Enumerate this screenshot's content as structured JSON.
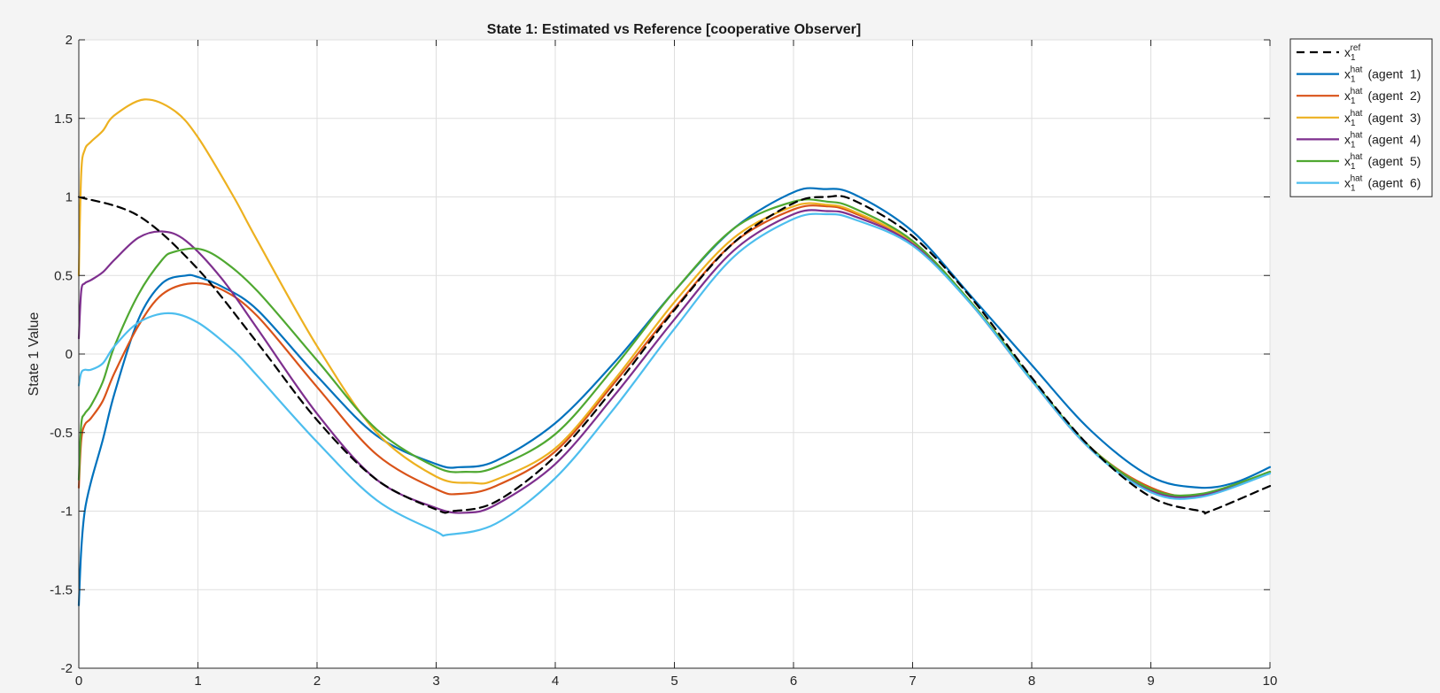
{
  "chart_data": {
    "type": "line",
    "title": "State 1: Estimated vs Reference [cooperative Observer]",
    "xlabel": "",
    "ylabel": "State 1 Value",
    "xlim": [
      0,
      10
    ],
    "ylim": [
      -2,
      2
    ],
    "xticks": [
      "0",
      "1",
      "2",
      "3",
      "4",
      "5",
      "6",
      "7",
      "8",
      "9",
      "10"
    ],
    "yticks": [
      "2",
      "1.5",
      "1",
      "0.5",
      "0",
      "-0.5",
      "-1",
      "-1.5",
      "-2"
    ],
    "grid": true,
    "legend_position": "outside-top-right",
    "series": [
      {
        "name": "x1ref",
        "legend_base": "x",
        "legend_sub": "1",
        "legend_sup": "ref",
        "legend_suffix": "",
        "color": "#000000",
        "dashed": true,
        "x": [
          0,
          0.5,
          1,
          1.5,
          2,
          2.5,
          3,
          3.14,
          3.5,
          4,
          4.5,
          5,
          5.5,
          6,
          6.28,
          6.5,
          7,
          7.5,
          8,
          8.5,
          9,
          9.42,
          9.5,
          10
        ],
        "y": [
          1,
          0.88,
          0.54,
          0.07,
          -0.42,
          -0.8,
          -0.99,
          -1.0,
          -0.94,
          -0.65,
          -0.21,
          0.28,
          0.71,
          0.96,
          1.0,
          0.98,
          0.75,
          0.35,
          -0.15,
          -0.6,
          -0.91,
          -1.0,
          -1.0,
          -0.84
        ]
      },
      {
        "name": "x1hat (agent 1)",
        "legend_base": "x",
        "legend_sub": "1",
        "legend_sup": "hat",
        "legend_suffix": "(agent  1)",
        "color": "#0072bd",
        "dashed": false,
        "x": [
          0,
          0.02,
          0.05,
          0.1,
          0.2,
          0.3,
          0.5,
          0.7,
          0.9,
          1.0,
          1.2,
          1.5,
          2,
          2.5,
          3,
          3.2,
          3.5,
          4,
          4.5,
          5,
          5.5,
          6,
          6.25,
          6.5,
          7,
          7.5,
          8,
          8.5,
          9,
          9.4,
          9.7,
          10
        ],
        "y": [
          -1.6,
          -1.25,
          -1.0,
          -0.82,
          -0.55,
          -0.25,
          0.22,
          0.45,
          0.5,
          0.49,
          0.43,
          0.28,
          -0.14,
          -0.52,
          -0.7,
          -0.72,
          -0.68,
          -0.44,
          -0.05,
          0.4,
          0.8,
          1.03,
          1.05,
          1.02,
          0.78,
          0.36,
          -0.07,
          -0.49,
          -0.78,
          -0.85,
          -0.82,
          -0.72
        ]
      },
      {
        "name": "x1hat (agent 2)",
        "legend_base": "x",
        "legend_sub": "1",
        "legend_sup": "hat",
        "legend_suffix": "(agent  2)",
        "color": "#d95319",
        "dashed": false,
        "x": [
          0,
          0.02,
          0.05,
          0.1,
          0.2,
          0.3,
          0.5,
          0.7,
          0.95,
          1.2,
          1.5,
          2,
          2.5,
          3,
          3.2,
          3.5,
          4,
          4.5,
          5,
          5.5,
          6,
          6.28,
          6.5,
          7,
          7.5,
          8,
          8.5,
          9,
          9.42,
          10
        ],
        "y": [
          -0.85,
          -0.55,
          -0.45,
          -0.41,
          -0.3,
          -0.12,
          0.18,
          0.38,
          0.45,
          0.41,
          0.24,
          -0.21,
          -0.64,
          -0.86,
          -0.89,
          -0.84,
          -0.62,
          -0.18,
          0.29,
          0.71,
          0.92,
          0.94,
          0.9,
          0.71,
          0.32,
          -0.16,
          -0.6,
          -0.85,
          -0.9,
          -0.75
        ]
      },
      {
        "name": "x1hat (agent 3)",
        "legend_base": "x",
        "legend_sub": "1",
        "legend_sup": "hat",
        "legend_suffix": "(agent  3)",
        "color": "#edb120",
        "dashed": false,
        "x": [
          0,
          0.02,
          0.05,
          0.1,
          0.2,
          0.3,
          0.55,
          0.8,
          1.0,
          1.3,
          1.5,
          2,
          2.5,
          3,
          3.3,
          3.5,
          4,
          4.5,
          5,
          5.5,
          6,
          6.28,
          6.5,
          7,
          7.5,
          8,
          8.5,
          9,
          9.42,
          10
        ],
        "y": [
          0.5,
          1.15,
          1.3,
          1.35,
          1.42,
          1.52,
          1.62,
          1.55,
          1.38,
          1.0,
          0.72,
          0.05,
          -0.5,
          -0.78,
          -0.82,
          -0.8,
          -0.6,
          -0.16,
          0.33,
          0.74,
          0.94,
          0.95,
          0.91,
          0.71,
          0.32,
          -0.16,
          -0.6,
          -0.86,
          -0.9,
          -0.75
        ]
      },
      {
        "name": "x1hat (agent 4)",
        "legend_base": "x",
        "legend_sub": "1",
        "legend_sup": "hat",
        "legend_suffix": "(agent  4)",
        "color": "#7e2f8e",
        "dashed": false,
        "x": [
          0,
          0.02,
          0.05,
          0.1,
          0.2,
          0.3,
          0.5,
          0.7,
          0.9,
          1.2,
          1.5,
          2,
          2.5,
          3,
          3.25,
          3.5,
          4,
          4.5,
          5,
          5.5,
          6,
          6.28,
          6.5,
          7,
          7.5,
          8,
          8.5,
          9,
          9.42,
          10
        ],
        "y": [
          0.1,
          0.4,
          0.45,
          0.47,
          0.52,
          0.6,
          0.74,
          0.78,
          0.72,
          0.48,
          0.16,
          -0.38,
          -0.8,
          -0.98,
          -1.01,
          -0.96,
          -0.7,
          -0.26,
          0.22,
          0.66,
          0.89,
          0.91,
          0.88,
          0.7,
          0.31,
          -0.17,
          -0.61,
          -0.87,
          -0.9,
          -0.75
        ]
      },
      {
        "name": "x1hat (agent 5)",
        "legend_base": "x",
        "legend_sub": "1",
        "legend_sup": "hat",
        "legend_suffix": "(agent  5)",
        "color": "#4fa831",
        "dashed": false,
        "x": [
          0,
          0.02,
          0.05,
          0.1,
          0.2,
          0.3,
          0.5,
          0.7,
          0.8,
          1.0,
          1.2,
          1.5,
          2,
          2.5,
          3,
          3.25,
          3.5,
          4,
          4.5,
          5,
          5.5,
          6,
          6.28,
          6.5,
          7,
          7.5,
          8,
          8.5,
          9,
          9.42,
          10
        ],
        "y": [
          -0.8,
          -0.45,
          -0.38,
          -0.33,
          -0.18,
          0.05,
          0.38,
          0.6,
          0.65,
          0.67,
          0.6,
          0.4,
          -0.04,
          -0.48,
          -0.72,
          -0.75,
          -0.72,
          -0.51,
          -0.08,
          0.4,
          0.8,
          0.97,
          0.97,
          0.93,
          0.72,
          0.32,
          -0.16,
          -0.6,
          -0.86,
          -0.89,
          -0.75
        ]
      },
      {
        "name": "x1hat (agent 6)",
        "legend_base": "x",
        "legend_sub": "1",
        "legend_sup": "hat",
        "legend_suffix": "(agent  6)",
        "color": "#4dbeee",
        "dashed": false,
        "x": [
          0,
          0.02,
          0.05,
          0.1,
          0.2,
          0.3,
          0.5,
          0.75,
          1.0,
          1.3,
          1.5,
          2,
          2.5,
          3,
          3.1,
          3.5,
          4,
          4.5,
          5,
          5.5,
          6,
          6.28,
          6.5,
          7,
          7.5,
          8,
          8.5,
          9,
          9.42,
          10
        ],
        "y": [
          -0.2,
          -0.12,
          -0.1,
          -0.1,
          -0.06,
          0.05,
          0.2,
          0.26,
          0.2,
          0.02,
          -0.14,
          -0.56,
          -0.93,
          -1.13,
          -1.15,
          -1.08,
          -0.79,
          -0.34,
          0.16,
          0.62,
          0.86,
          0.89,
          0.86,
          0.69,
          0.31,
          -0.17,
          -0.61,
          -0.88,
          -0.91,
          -0.76
        ]
      }
    ]
  }
}
